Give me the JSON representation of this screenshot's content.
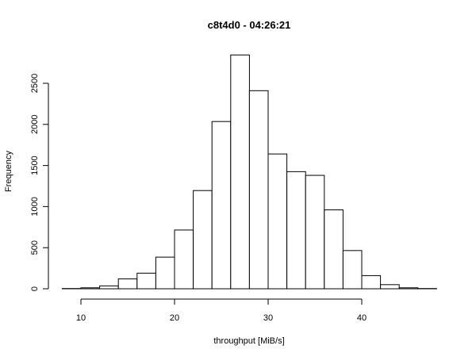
{
  "chart_data": {
    "type": "bar",
    "subtype": "histogram",
    "title": "c8t4d0 - 04:26:21",
    "xlabel": "throughput [MiB/s]",
    "ylabel": "Frequency",
    "bin_edges": [
      8,
      10,
      12,
      14,
      16,
      18,
      20,
      22,
      24,
      26,
      28,
      30,
      32,
      34,
      36,
      38,
      40,
      42,
      44,
      46,
      48
    ],
    "values": [
      3,
      12,
      35,
      120,
      190,
      385,
      715,
      1195,
      2035,
      2845,
      2410,
      1640,
      1425,
      1380,
      960,
      465,
      160,
      50,
      12,
      3
    ],
    "xlim": [
      8,
      48
    ],
    "ylim": [
      0,
      2850
    ],
    "x_ticks": [
      10,
      20,
      30,
      40
    ],
    "y_ticks": [
      0,
      500,
      1000,
      1500,
      2000,
      2500
    ],
    "colors": {
      "bar_fill": "#ffffff",
      "bar_stroke": "#000000",
      "axis": "#000000"
    }
  }
}
